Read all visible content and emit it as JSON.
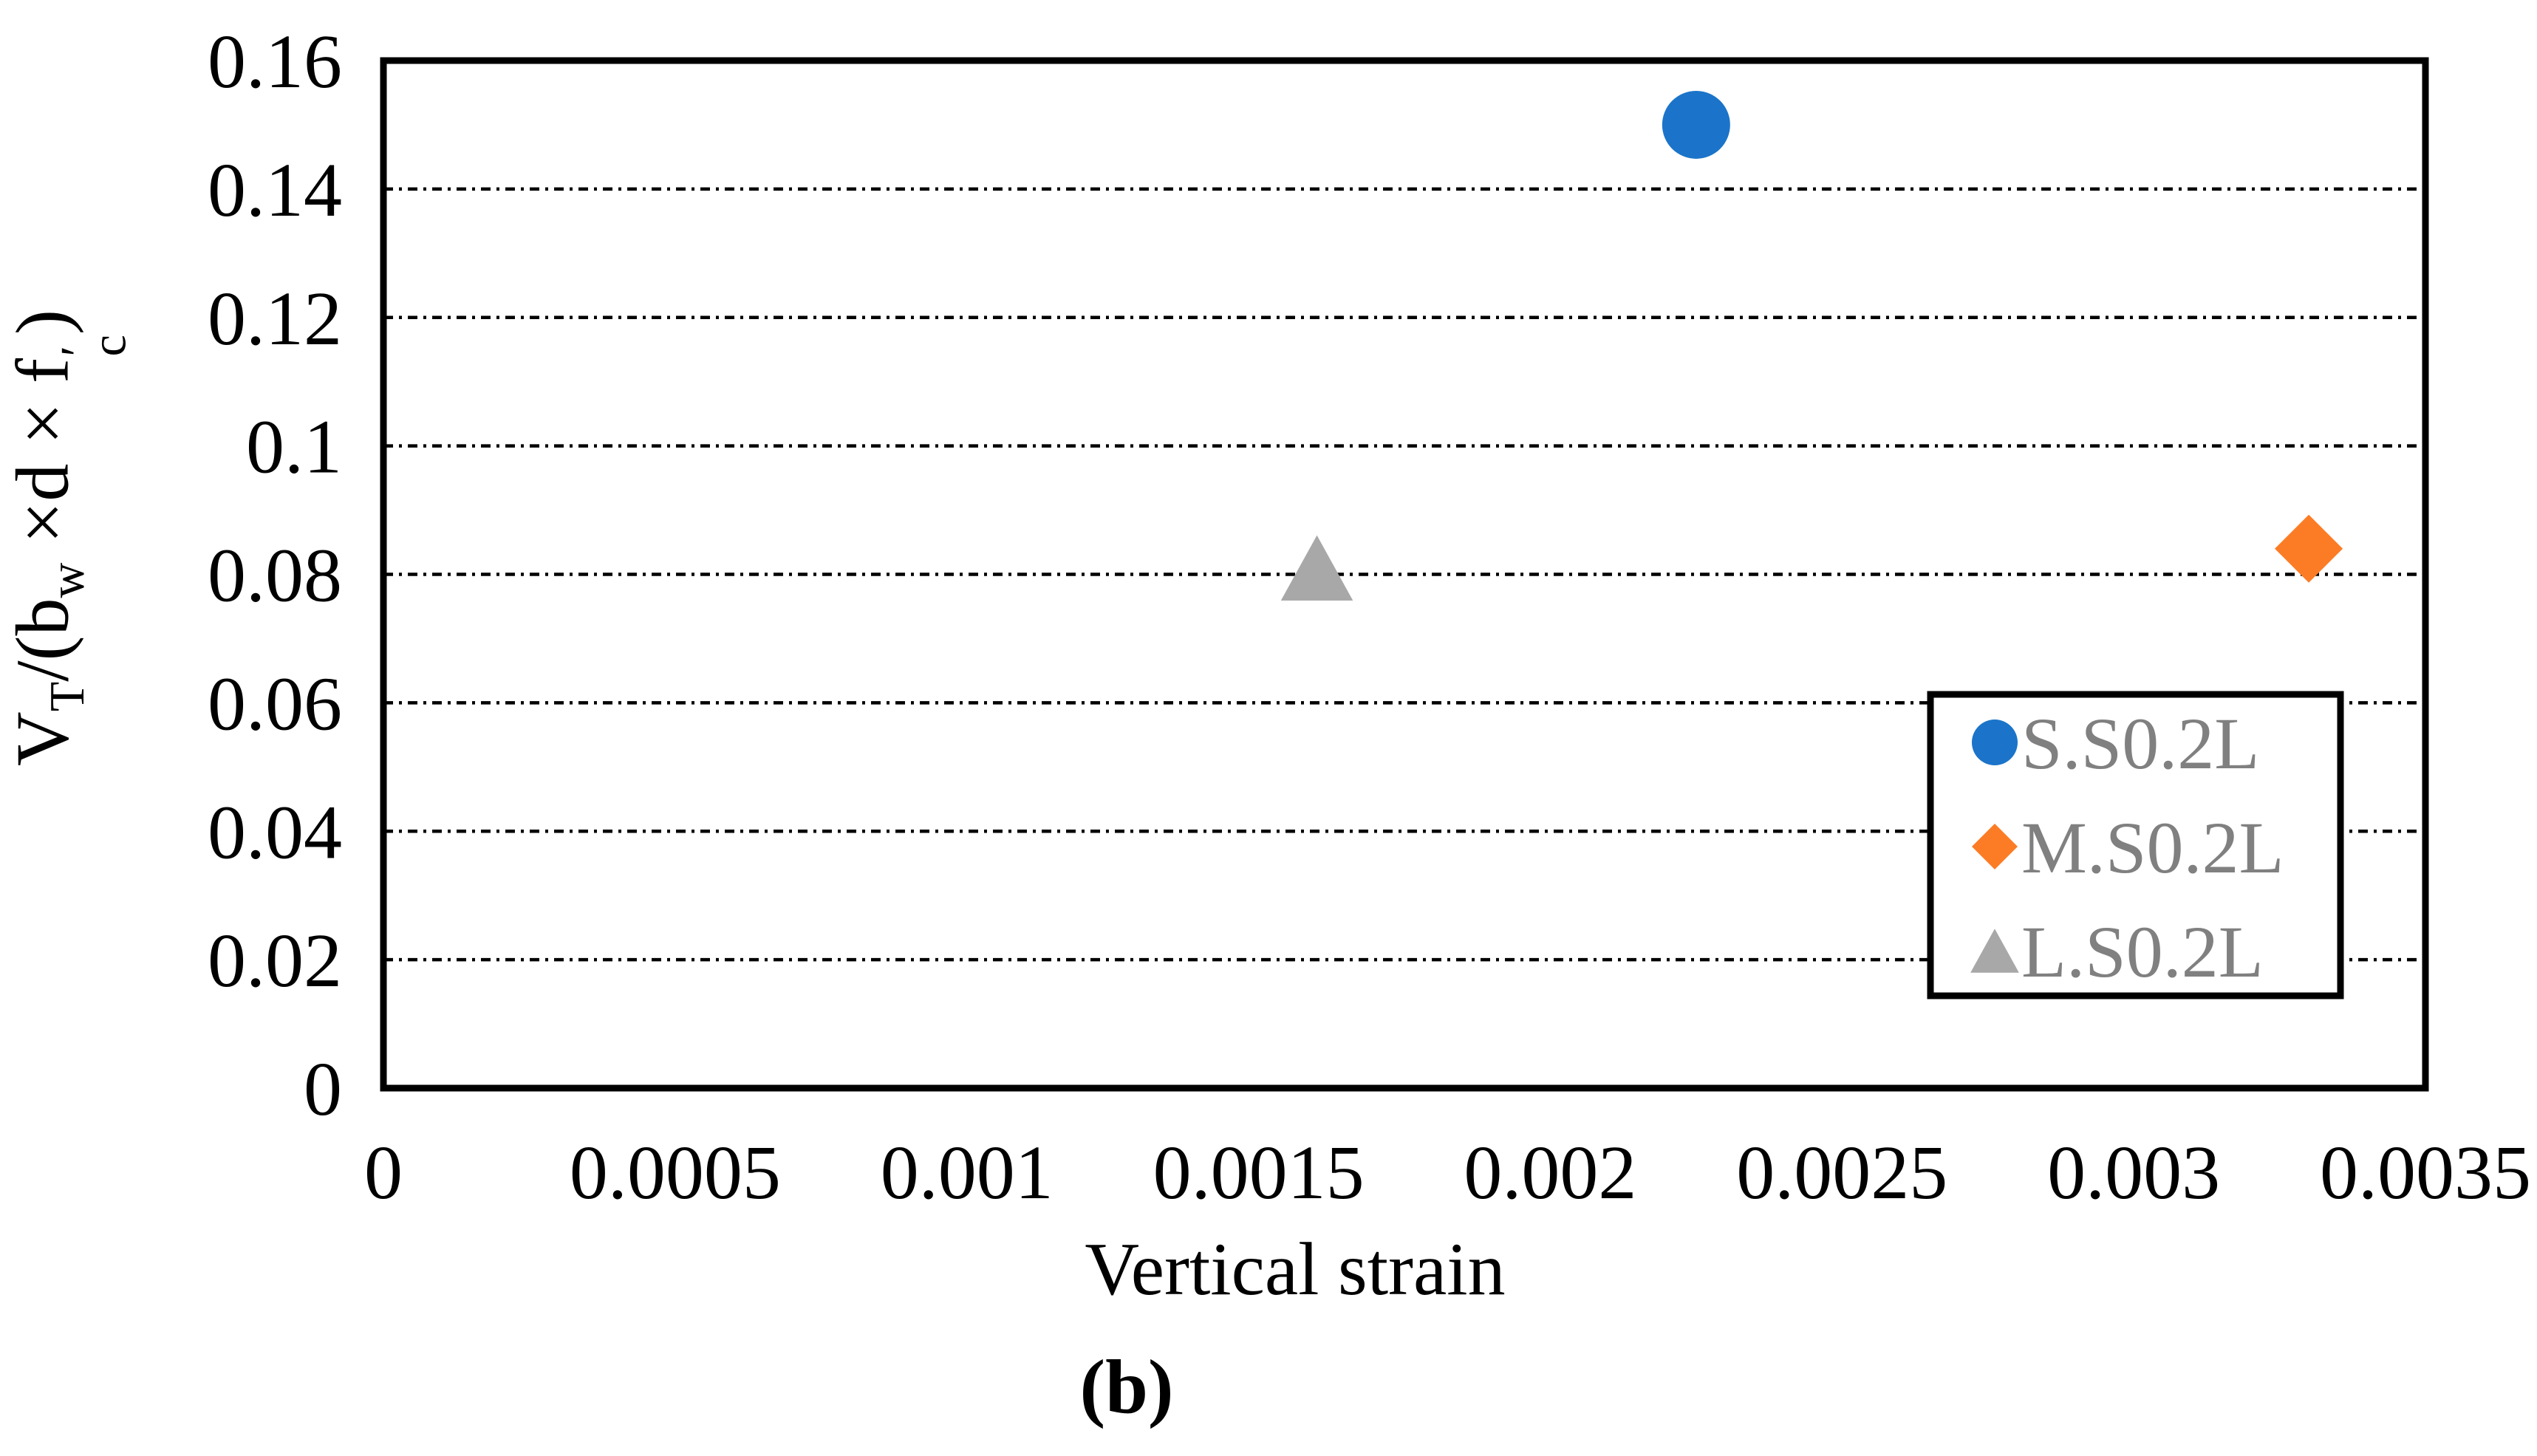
{
  "figure": {
    "caption": "(b)",
    "background": "#ffffff"
  },
  "chart_data": {
    "type": "scatter",
    "title": "",
    "xlabel": "Vertical strain",
    "ylabel_plain": "VT/(bw ×d × f′c)",
    "ylabel_parts": {
      "v": "V",
      "v_sub": "T",
      "open": "/(b",
      "b_sub": "w",
      "mid": " ×d × f",
      "f_prime": "′",
      "f_sub": "c",
      "close": ")"
    },
    "xlim": [
      0,
      0.0035
    ],
    "ylim": [
      0,
      0.16
    ],
    "xticks": [
      "0",
      "0.0005",
      "0.001",
      "0.0015",
      "0.002",
      "0.0025",
      "0.003",
      "0.0035"
    ],
    "yticks": [
      "0",
      "0.02",
      "0.04",
      "0.06",
      "0.08",
      "0.1",
      "0.12",
      "0.14",
      "0.16"
    ],
    "grid": {
      "axis": "y",
      "style": "dash-dot",
      "color": "#000000"
    },
    "legend": {
      "position": "inside-bottom-right",
      "text_color": "#808080",
      "border_color": "#000000"
    },
    "series": [
      {
        "name": "S.S0.2L",
        "marker": "circle",
        "color": "#1B74C9",
        "points": [
          {
            "x": 0.00225,
            "y": 0.15
          }
        ]
      },
      {
        "name": "M.S0.2L",
        "marker": "diamond",
        "color": "#FC7C25",
        "points": [
          {
            "x": 0.0033,
            "y": 0.084
          }
        ]
      },
      {
        "name": "L.S0.2L",
        "marker": "triangle",
        "color": "#A8A8A8",
        "points": [
          {
            "x": 0.0016,
            "y": 0.081
          }
        ]
      }
    ]
  }
}
